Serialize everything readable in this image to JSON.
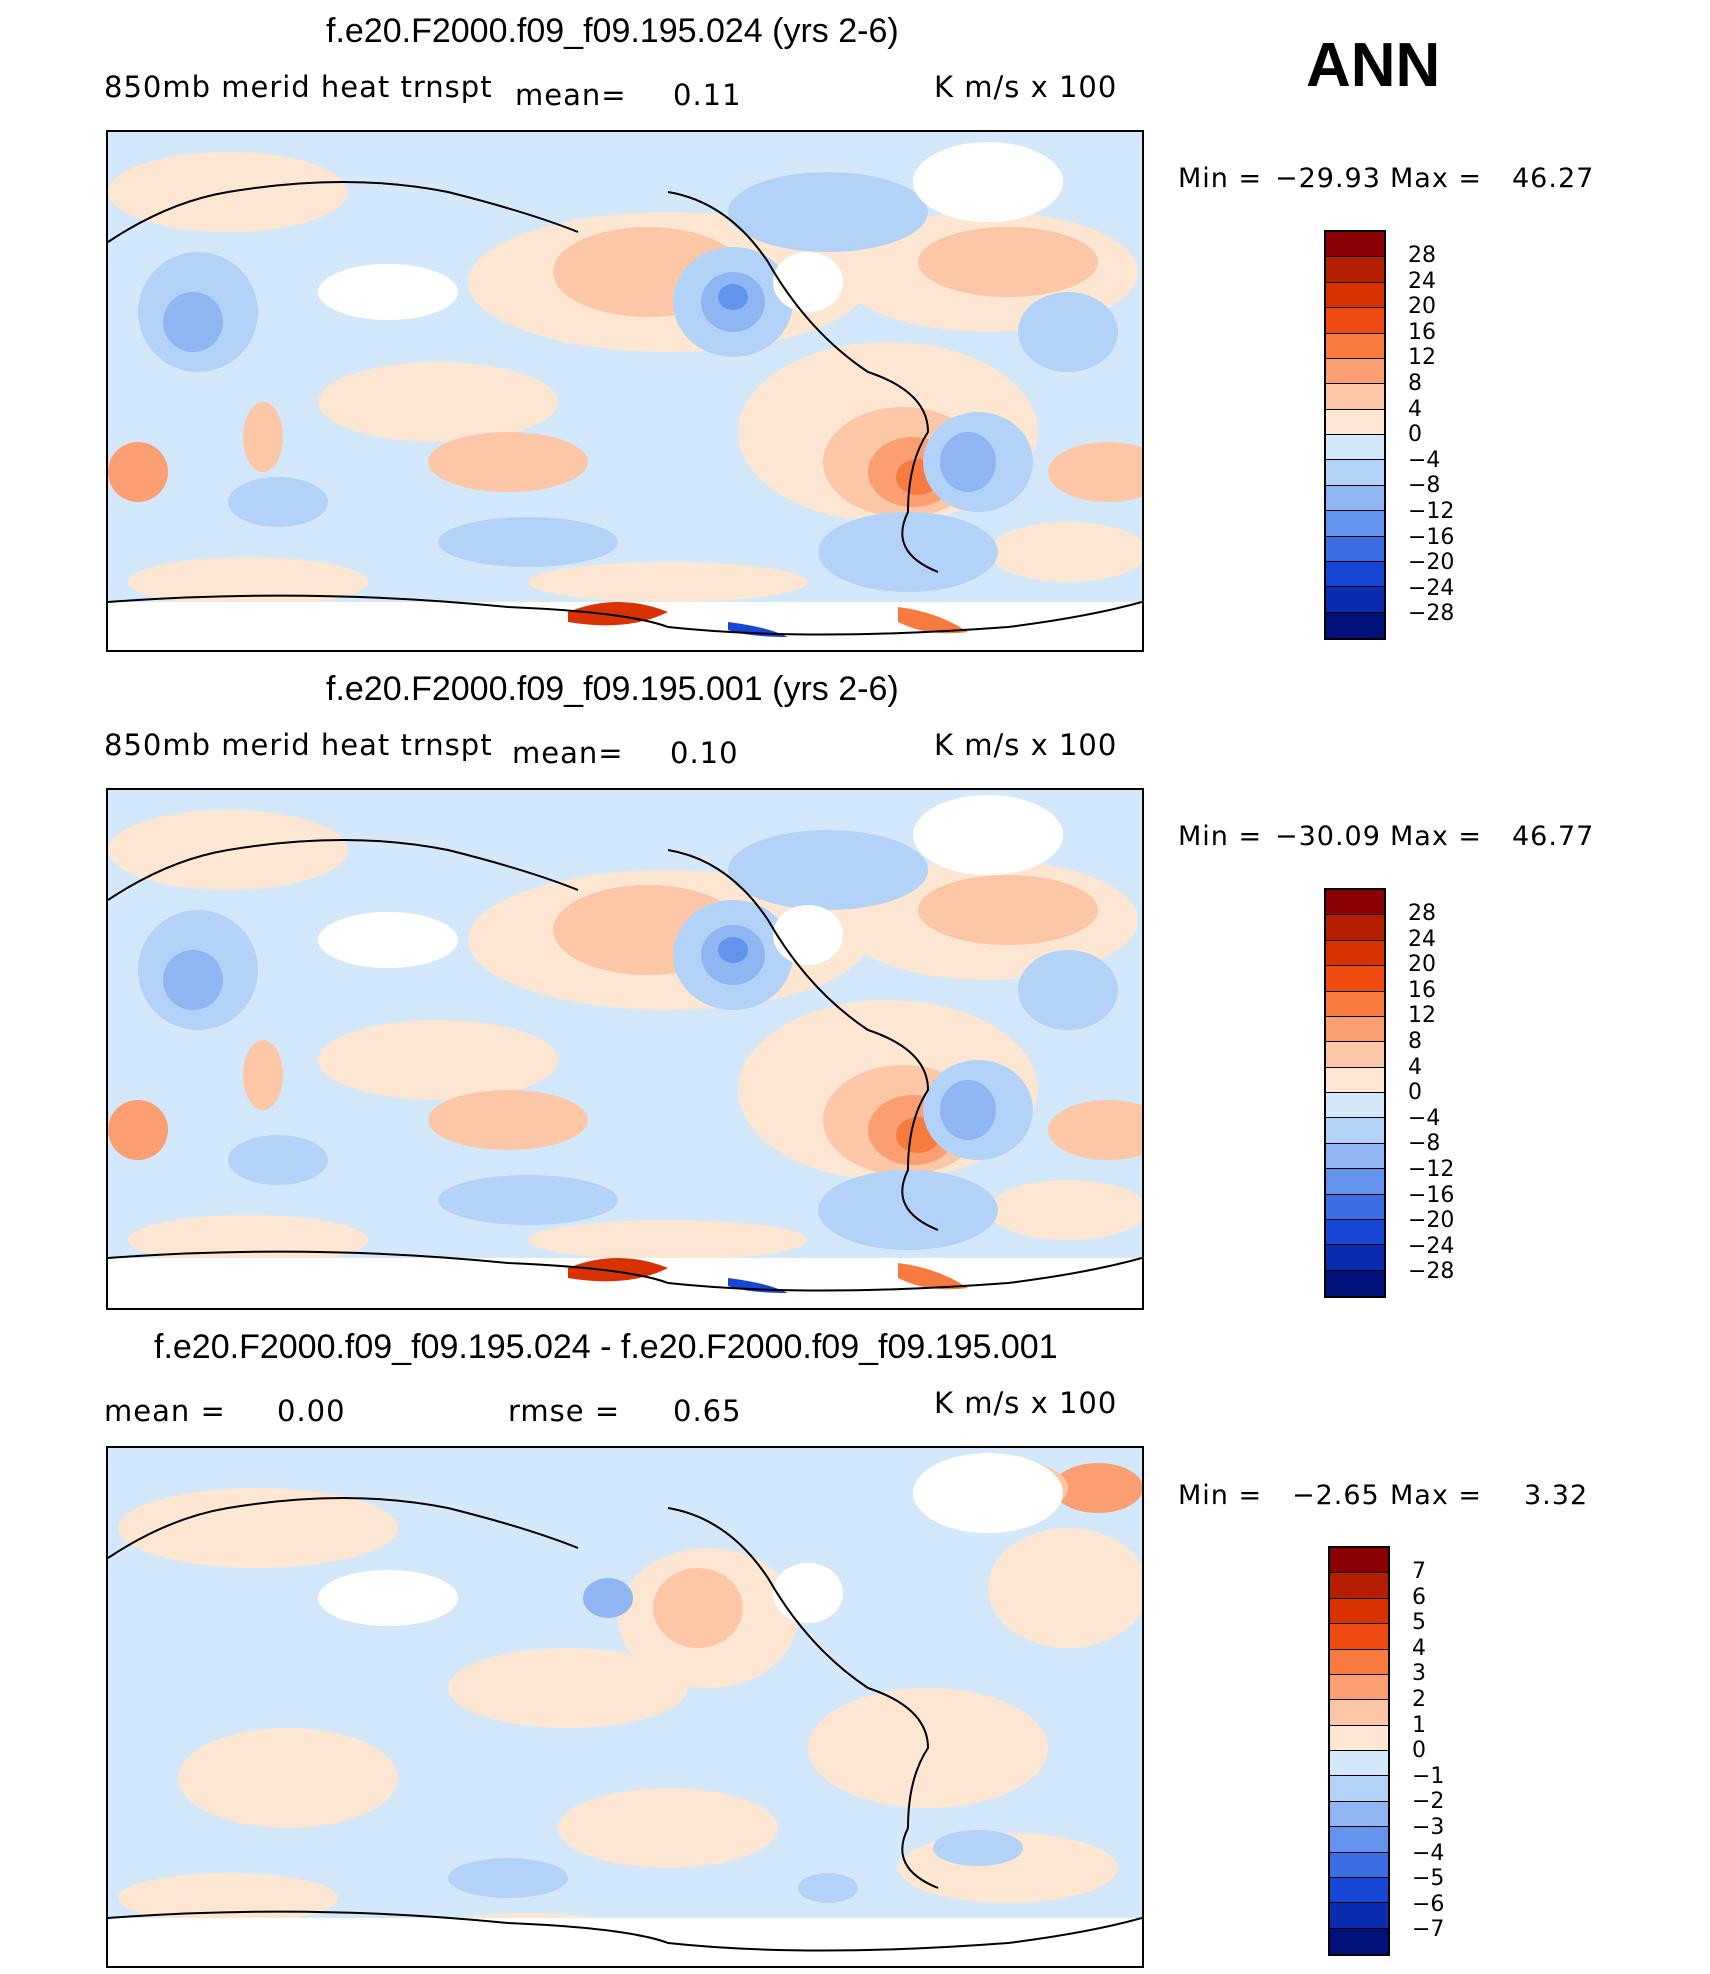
{
  "header": {
    "season": "ANN"
  },
  "panels": [
    {
      "title": "f.e20.F2000.f09_f09.195.024 (yrs 2-6)",
      "left_label": "850mb merid heat trnspt",
      "mean_label": "mean=",
      "mean_value": "0.11",
      "units": "K m/s x 100",
      "minmax": {
        "min_label": "Min =",
        "min_value": "−29.93",
        "max_label": "Max =",
        "max_value": "46.27"
      }
    },
    {
      "title": "f.e20.F2000.f09_f09.195.001 (yrs 2-6)",
      "left_label": "850mb merid heat trnspt",
      "mean_label": "mean=",
      "mean_value": "0.10",
      "units": "K m/s x 100",
      "minmax": {
        "min_label": "Min =",
        "min_value": "−30.09",
        "max_label": "Max =",
        "max_value": "46.77"
      }
    },
    {
      "title": "f.e20.F2000.f09_f09.195.024 - f.e20.F2000.f09_f09.195.001",
      "mean_label": "mean =",
      "mean_value": "0.00",
      "rmse_label": "rmse =",
      "rmse_value": "0.65",
      "units": "K m/s x 100",
      "minmax": {
        "min_label": "Min =",
        "min_value": "−2.65",
        "max_label": "Max =",
        "max_value": "3.32"
      }
    }
  ],
  "colorbars": {
    "model": {
      "labels": [
        "28",
        "24",
        "20",
        "16",
        "12",
        "8",
        "4",
        "0",
        "−4",
        "−8",
        "−12",
        "−16",
        "−20",
        "−24",
        "−28"
      ],
      "colors": [
        "#8b0000",
        "#b51e00",
        "#d93200",
        "#ef4a10",
        "#f77a3e",
        "#fb9f72",
        "#fcc7a6",
        "#fde6d2",
        "#d4e8fb",
        "#b3d2f8",
        "#8fb6f2",
        "#6393ec",
        "#3d6de4",
        "#1746d6",
        "#0a2cb0",
        "#00127a"
      ]
    },
    "diff": {
      "labels": [
        "7",
        "6",
        "5",
        "4",
        "3",
        "2",
        "1",
        "0",
        "−1",
        "−2",
        "−3",
        "−4",
        "−5",
        "−6",
        "−7"
      ],
      "colors": [
        "#8b0000",
        "#b51e00",
        "#d93200",
        "#ef4a10",
        "#f77a3e",
        "#fb9f72",
        "#fcc7a6",
        "#fde6d2",
        "#d4e8fb",
        "#b3d2f8",
        "#8fb6f2",
        "#6393ec",
        "#3d6de4",
        "#1746d6",
        "#0a2cb0",
        "#00127a"
      ]
    }
  }
}
